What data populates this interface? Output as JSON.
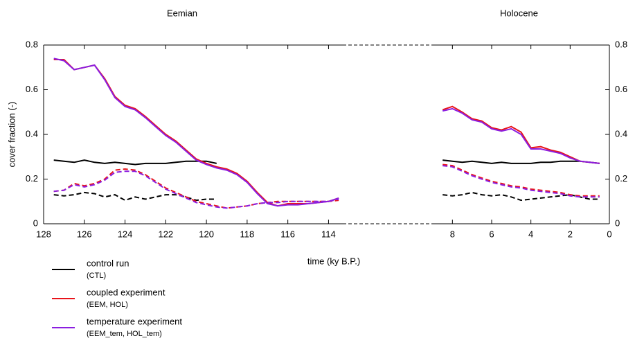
{
  "chart_data": {
    "type": "line",
    "ylabel": "cover fraction (-)",
    "xlabel": "time (ky B.P.)",
    "ylim": [
      0,
      0.8
    ],
    "yticks": [
      0,
      0.2,
      0.4,
      0.6,
      0.8
    ],
    "panels": [
      {
        "title": "Eemian",
        "xlim": [
          128,
          113.3
        ],
        "xticks": [
          128,
          126,
          124,
          122,
          120,
          118,
          116,
          114
        ],
        "x": [
          127.5,
          127,
          126.5,
          126,
          125.5,
          125,
          124.5,
          124,
          123.5,
          123,
          122.5,
          122,
          121.5,
          121,
          120.5,
          120,
          119.5,
          119,
          118.5,
          118,
          117.5,
          117,
          116.5,
          116,
          115.5,
          115,
          114.5,
          114,
          113.5
        ],
        "series": [
          {
            "name": "control run",
            "note": "(CTL)",
            "color": "#000000",
            "values": [
              0.285,
              0.28,
              0.275,
              0.285,
              0.275,
              0.27,
              0.275,
              0.27,
              0.265,
              0.27,
              0.27,
              0.27,
              0.275,
              0.28,
              0.28,
              0.28,
              0.27,
              null,
              null,
              null,
              null,
              null,
              null,
              null,
              null,
              null,
              null,
              null,
              null
            ],
            "values_dashed": [
              0.13,
              0.125,
              0.13,
              0.14,
              0.135,
              0.12,
              0.13,
              0.105,
              0.12,
              0.11,
              0.12,
              0.13,
              0.13,
              0.12,
              0.105,
              0.11,
              0.11,
              null,
              null,
              null,
              null,
              null,
              null,
              null,
              null,
              null,
              null,
              null,
              null
            ]
          },
          {
            "name": "coupled experiment",
            "note": "(EEM, HOL)",
            "color": "#e8141b",
            "values": [
              0.735,
              0.735,
              0.69,
              0.7,
              0.71,
              0.65,
              0.57,
              0.53,
              0.515,
              0.48,
              0.44,
              0.4,
              0.37,
              0.33,
              0.29,
              0.27,
              0.255,
              0.245,
              0.225,
              0.19,
              0.14,
              0.095,
              0.08,
              0.09,
              0.09,
              0.09,
              0.095,
              0.1,
              0.115
            ],
            "values_dashed": [
              0.145,
              0.15,
              0.18,
              0.17,
              0.18,
              0.2,
              0.24,
              0.245,
              0.24,
              0.22,
              0.19,
              0.16,
              0.14,
              0.12,
              0.1,
              0.09,
              0.08,
              0.07,
              0.075,
              0.08,
              0.09,
              0.095,
              0.1,
              0.1,
              0.1,
              0.1,
              0.1,
              0.1,
              0.105
            ]
          },
          {
            "name": "temperature experiment",
            "note": "(EEM_tem, HOL_tem)",
            "color": "#8b1ee0",
            "values": [
              0.74,
              0.73,
              0.69,
              0.7,
              0.71,
              0.645,
              0.565,
              0.525,
              0.51,
              0.475,
              0.435,
              0.395,
              0.365,
              0.325,
              0.285,
              0.265,
              0.25,
              0.24,
              0.22,
              0.185,
              0.135,
              0.09,
              0.08,
              0.085,
              0.085,
              0.09,
              0.095,
              0.1,
              0.115
            ],
            "values_dashed": [
              0.145,
              0.15,
              0.175,
              0.165,
              0.175,
              0.195,
              0.23,
              0.235,
              0.235,
              0.215,
              0.185,
              0.155,
              0.135,
              0.115,
              0.095,
              0.085,
              0.075,
              0.07,
              0.075,
              0.08,
              0.09,
              0.095,
              0.095,
              0.1,
              0.1,
              0.1,
              0.1,
              0.1,
              0.11
            ]
          }
        ]
      },
      {
        "title": "Holocene",
        "xlim": [
          9,
          0
        ],
        "xticks": [
          8,
          6,
          4,
          2,
          0
        ],
        "x": [
          8.5,
          8,
          7.5,
          7,
          6.5,
          6,
          5.5,
          5,
          4.5,
          4,
          3.5,
          3,
          2.5,
          2,
          1.5,
          1,
          0.5
        ],
        "series": [
          {
            "color": "#000000",
            "values": [
              0.285,
              0.28,
              0.275,
              0.28,
              0.275,
              0.27,
              0.275,
              0.27,
              0.27,
              0.27,
              0.275,
              0.275,
              0.28,
              0.28,
              0.28,
              0.275,
              0.27
            ],
            "values_dashed": [
              0.13,
              0.125,
              0.13,
              0.14,
              0.13,
              0.125,
              0.13,
              0.12,
              0.105,
              0.11,
              0.115,
              0.12,
              0.125,
              0.13,
              0.12,
              0.11,
              0.11
            ]
          },
          {
            "color": "#e8141b",
            "values": [
              0.51,
              0.525,
              0.5,
              0.47,
              0.46,
              0.43,
              0.42,
              0.435,
              0.41,
              0.34,
              0.345,
              0.33,
              0.32,
              0.3,
              0.28,
              0.275,
              0.27
            ],
            "values_dashed": [
              0.265,
              0.26,
              0.24,
              0.22,
              0.205,
              0.19,
              0.18,
              0.17,
              0.165,
              0.155,
              0.15,
              0.145,
              0.14,
              0.13,
              0.125,
              0.125,
              0.125
            ]
          },
          {
            "color": "#8b1ee0",
            "values": [
              0.505,
              0.515,
              0.495,
              0.465,
              0.455,
              0.425,
              0.415,
              0.425,
              0.4,
              0.335,
              0.335,
              0.325,
              0.315,
              0.295,
              0.28,
              0.275,
              0.27
            ],
            "values_dashed": [
              0.26,
              0.255,
              0.235,
              0.215,
              0.2,
              0.185,
              0.175,
              0.165,
              0.16,
              0.15,
              0.145,
              0.14,
              0.135,
              0.125,
              0.12,
              0.12,
              0.12
            ]
          }
        ]
      }
    ]
  }
}
